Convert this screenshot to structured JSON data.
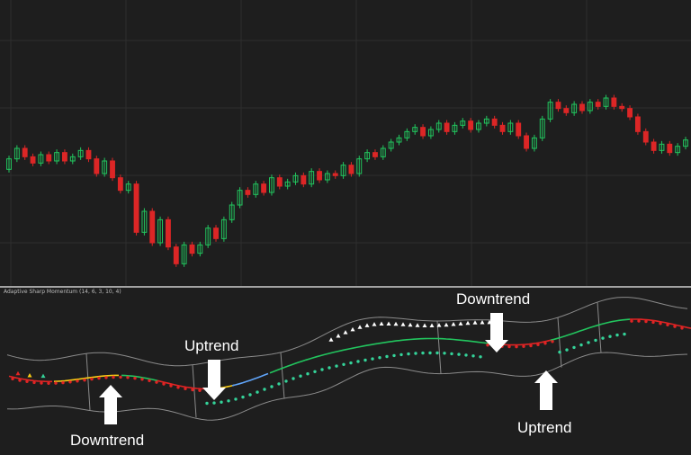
{
  "colors": {
    "background": "#1e1e1e",
    "grid": "#2e2e2e",
    "divider": "#cfcfcf",
    "up_candle": "#22c55e",
    "down_candle": "#dc2626",
    "band": "#8a8a8a",
    "signal_green": "#22c55e",
    "signal_red": "#e02424",
    "signal_yellow": "#facc15",
    "signal_blue": "#60a5fa",
    "dot_teal": "#34d399",
    "triangle_white": "#ffffff",
    "annotation": "#ffffff"
  },
  "icons": {
    "arrow": "thick-block-arrow-icon",
    "signal_marker": "triangle-up-icon"
  },
  "indicator": {
    "title": "Adaptive Sharp Momentum (14, 6, 3, 10, 4)"
  },
  "annotations": [
    {
      "label": "Uptrend",
      "arrow": "down"
    },
    {
      "label": "Downtrend",
      "arrow": "up"
    },
    {
      "label": "Downtrend",
      "arrow": "down"
    },
    {
      "label": "Uptrend",
      "arrow": "up"
    }
  ],
  "chart_data": {
    "type": "candlestick",
    "grid": true,
    "axes_visible": false,
    "price_series": [
      {
        "o": 50,
        "c": 55
      },
      {
        "o": 55,
        "c": 60
      },
      {
        "o": 60,
        "c": 56
      },
      {
        "o": 56,
        "c": 53
      },
      {
        "o": 53,
        "c": 57
      },
      {
        "o": 57,
        "c": 54
      },
      {
        "o": 54,
        "c": 58
      },
      {
        "o": 58,
        "c": 54
      },
      {
        "o": 54,
        "c": 56
      },
      {
        "o": 56,
        "c": 59
      },
      {
        "o": 59,
        "c": 55
      },
      {
        "o": 55,
        "c": 48
      },
      {
        "o": 48,
        "c": 54
      },
      {
        "o": 54,
        "c": 46
      },
      {
        "o": 46,
        "c": 40
      },
      {
        "o": 40,
        "c": 43
      },
      {
        "o": 43,
        "c": 20
      },
      {
        "o": 20,
        "c": 30
      },
      {
        "o": 30,
        "c": 15
      },
      {
        "o": 15,
        "c": 26
      },
      {
        "o": 26,
        "c": 13
      },
      {
        "o": 13,
        "c": 5
      },
      {
        "o": 5,
        "c": 14
      },
      {
        "o": 14,
        "c": 10
      },
      {
        "o": 10,
        "c": 14
      },
      {
        "o": 14,
        "c": 22
      },
      {
        "o": 22,
        "c": 17
      },
      {
        "o": 17,
        "c": 26
      },
      {
        "o": 26,
        "c": 33
      },
      {
        "o": 33,
        "c": 40
      },
      {
        "o": 40,
        "c": 38
      },
      {
        "o": 38,
        "c": 43
      },
      {
        "o": 43,
        "c": 39
      },
      {
        "o": 39,
        "c": 46
      },
      {
        "o": 46,
        "c": 42
      },
      {
        "o": 42,
        "c": 44
      },
      {
        "o": 44,
        "c": 47
      },
      {
        "o": 47,
        "c": 43
      },
      {
        "o": 43,
        "c": 49
      },
      {
        "o": 49,
        "c": 45
      },
      {
        "o": 45,
        "c": 48
      },
      {
        "o": 48,
        "c": 47
      },
      {
        "o": 47,
        "c": 52
      },
      {
        "o": 52,
        "c": 48
      },
      {
        "o": 48,
        "c": 55
      },
      {
        "o": 55,
        "c": 58
      },
      {
        "o": 58,
        "c": 56
      },
      {
        "o": 56,
        "c": 60
      },
      {
        "o": 60,
        "c": 63
      },
      {
        "o": 63,
        "c": 65
      },
      {
        "o": 65,
        "c": 68
      },
      {
        "o": 68,
        "c": 70
      },
      {
        "o": 70,
        "c": 66
      },
      {
        "o": 66,
        "c": 69
      },
      {
        "o": 69,
        "c": 72
      },
      {
        "o": 72,
        "c": 68
      },
      {
        "o": 68,
        "c": 71
      },
      {
        "o": 71,
        "c": 73
      },
      {
        "o": 73,
        "c": 69
      },
      {
        "o": 69,
        "c": 72
      },
      {
        "o": 72,
        "c": 74
      },
      {
        "o": 74,
        "c": 71
      },
      {
        "o": 71,
        "c": 68
      },
      {
        "o": 68,
        "c": 72
      },
      {
        "o": 72,
        "c": 66
      },
      {
        "o": 66,
        "c": 60
      },
      {
        "o": 60,
        "c": 65
      },
      {
        "o": 65,
        "c": 74
      },
      {
        "o": 74,
        "c": 82
      },
      {
        "o": 82,
        "c": 79
      },
      {
        "o": 79,
        "c": 77
      },
      {
        "o": 77,
        "c": 81
      },
      {
        "o": 81,
        "c": 78
      },
      {
        "o": 78,
        "c": 82
      },
      {
        "o": 82,
        "c": 80
      },
      {
        "o": 80,
        "c": 84
      },
      {
        "o": 84,
        "c": 80
      },
      {
        "o": 80,
        "c": 79
      },
      {
        "o": 79,
        "c": 75
      },
      {
        "o": 75,
        "c": 68
      },
      {
        "o": 68,
        "c": 63
      },
      {
        "o": 63,
        "c": 59
      },
      {
        "o": 59,
        "c": 62
      },
      {
        "o": 62,
        "c": 58
      },
      {
        "o": 58,
        "c": 61
      },
      {
        "o": 61,
        "c": 64
      }
    ],
    "indicator_series": [
      {
        "name": "upper_band"
      },
      {
        "name": "lower_band"
      },
      {
        "name": "momentum_line"
      },
      {
        "name": "signal_dots"
      },
      {
        "name": "signal_triangles"
      }
    ]
  }
}
